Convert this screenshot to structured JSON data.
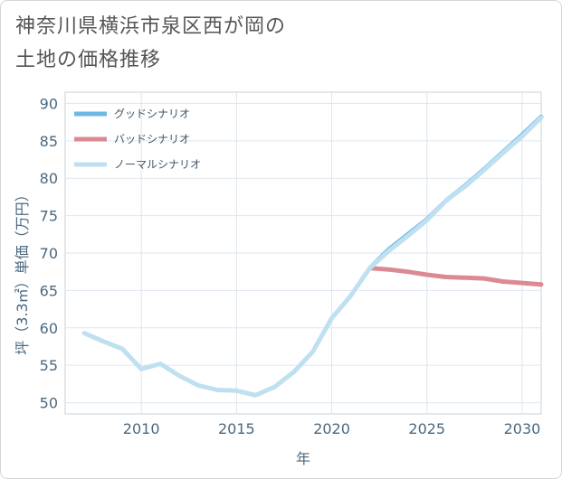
{
  "title_line1": "神奈川県横浜市泉区西が岡の",
  "title_line2": "土地の価格推移",
  "chart_data": {
    "type": "line",
    "title": "神奈川県横浜市泉区西が岡の土地の価格推移",
    "xlabel": "年",
    "ylabel": "坪（3.3㎡）単価（万円）",
    "xlim": [
      2006,
      2031
    ],
    "ylim": [
      48.5,
      91.5
    ],
    "xticks": [
      2010,
      2015,
      2020,
      2025,
      2030
    ],
    "yticks": [
      50,
      55,
      60,
      65,
      70,
      75,
      80,
      85,
      90
    ],
    "grid": true,
    "legend_position": "top-left",
    "series": [
      {
        "name": "グッドシナリオ",
        "color": "#6fb8e6",
        "x": [
          2022,
          2023,
          2024,
          2025,
          2026,
          2027,
          2028,
          2029,
          2030,
          2031
        ],
        "values": [
          68.0,
          70.5,
          72.5,
          74.5,
          77.0,
          79.0,
          81.2,
          83.5,
          85.8,
          88.2
        ]
      },
      {
        "name": "バッドシナリオ",
        "color": "#db8a93",
        "x": [
          2022,
          2023,
          2024,
          2025,
          2026,
          2027,
          2028,
          2029,
          2030,
          2031
        ],
        "values": [
          68.0,
          67.8,
          67.5,
          67.1,
          66.8,
          66.7,
          66.6,
          66.2,
          66.0,
          65.8
        ]
      },
      {
        "name": "ノーマルシナリオ",
        "color": "#bfe0f0",
        "x": [
          2007,
          2008,
          2009,
          2010,
          2011,
          2012,
          2013,
          2014,
          2015,
          2016,
          2017,
          2018,
          2019,
          2020,
          2021,
          2022,
          2023,
          2024,
          2025,
          2026,
          2027,
          2028,
          2029,
          2030,
          2031
        ],
        "values": [
          59.3,
          58.2,
          57.2,
          54.5,
          55.2,
          53.6,
          52.3,
          51.7,
          51.6,
          51.0,
          52.1,
          54.1,
          56.8,
          61.3,
          64.3,
          68.0,
          70.3,
          72.3,
          74.4,
          77.0,
          78.9,
          81.1,
          83.4,
          85.6,
          88.1
        ]
      }
    ]
  }
}
